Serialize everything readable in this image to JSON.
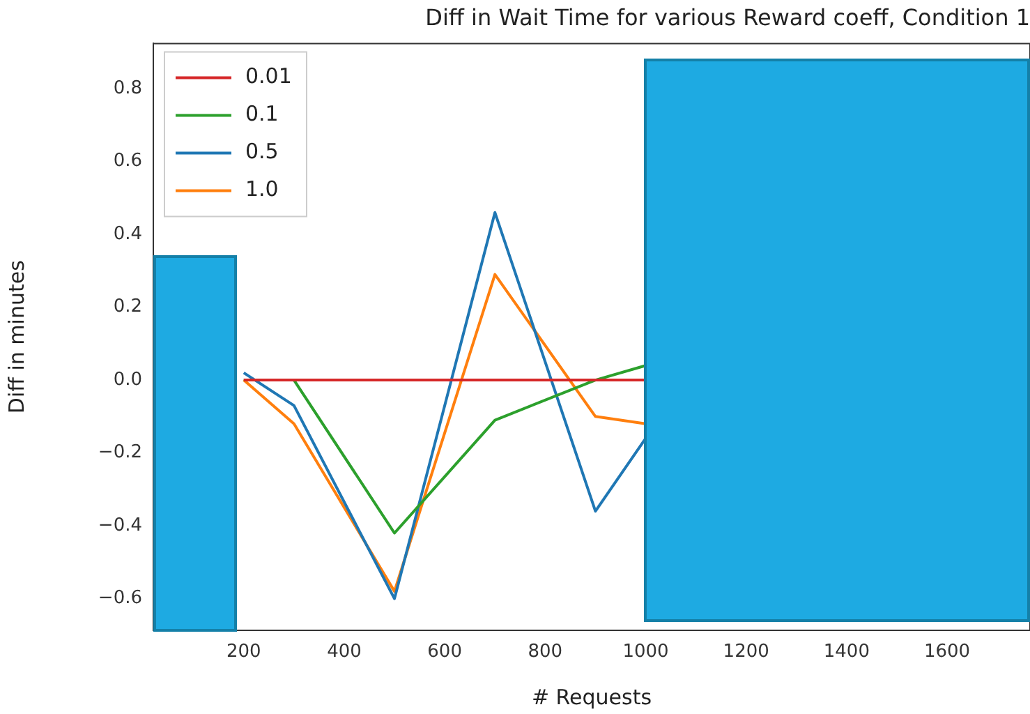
{
  "chart_data": {
    "type": "line",
    "title": "Diff in Wait Time for various Reward coeff, Condition 1",
    "xlabel": "# Requests",
    "ylabel": "Diff in minutes",
    "x": [
      200,
      300,
      500,
      700,
      900,
      1000
    ],
    "series": [
      {
        "name": "0.01",
        "color": "#d62728",
        "values": [
          0,
          0,
          0,
          0,
          0,
          0
        ]
      },
      {
        "name": "0.1",
        "color": "#2ca02c",
        "values": [
          0,
          0,
          -0.42,
          -0.11,
          0,
          0.04
        ]
      },
      {
        "name": "0.5",
        "color": "#1f77b4",
        "values": [
          0.02,
          -0.07,
          -0.6,
          0.46,
          -0.36,
          -0.16
        ]
      },
      {
        "name": "1.0",
        "color": "#ff7f0e",
        "values": [
          0,
          -0.12,
          -0.58,
          0.29,
          -0.1,
          -0.12
        ]
      }
    ],
    "xlim": [
      20,
      1765
    ],
    "xticks": [
      200,
      400,
      600,
      800,
      1000,
      1200,
      1400,
      1600
    ],
    "ylim": [
      -0.687,
      0.924
    ],
    "yticks": [
      {
        "value": -0.6,
        "label": "−0.6"
      },
      {
        "value": -0.4,
        "label": "−0.4"
      },
      {
        "value": -0.2,
        "label": "−0.2"
      },
      {
        "value": 0,
        "label": "0.0"
      },
      {
        "value": 0.2,
        "label": "0.2"
      },
      {
        "value": 0.4,
        "label": "0.4"
      },
      {
        "value": 0.6,
        "label": "0.6"
      },
      {
        "value": 0.8,
        "label": "0.8"
      }
    ],
    "grid": false,
    "legend": "top left",
    "marker": "none",
    "line_style": "solid"
  }
}
